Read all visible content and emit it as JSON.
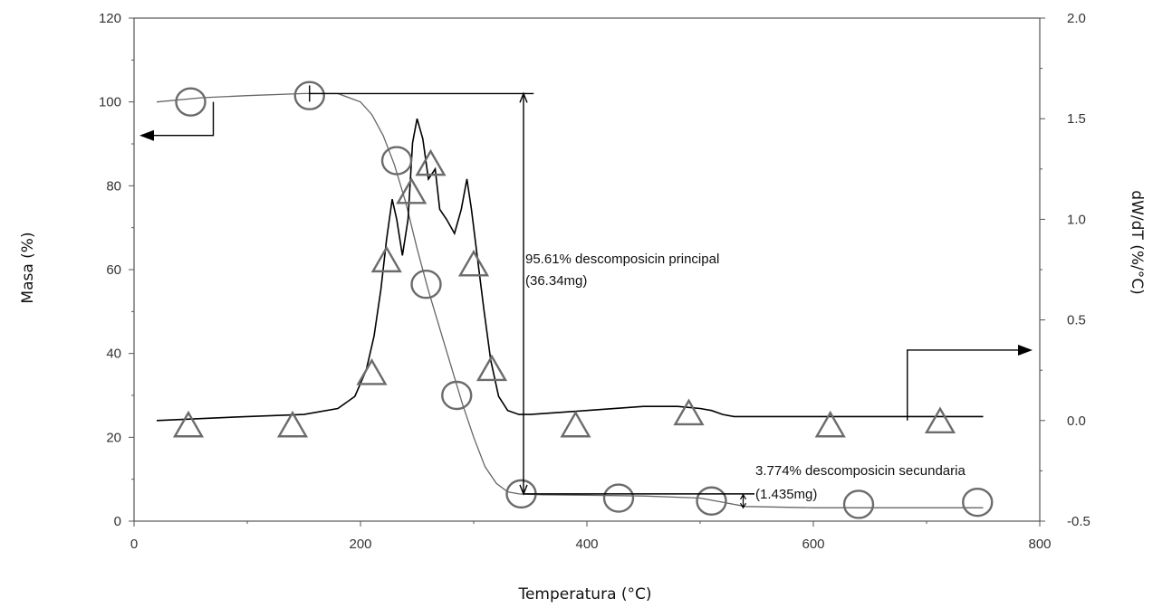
{
  "chart_data": {
    "type": "line",
    "xlabel": "Temperatura (°C)",
    "ylabel": "Masa (%)",
    "y2label": "dW/dT (%/°C)",
    "xlim": [
      0,
      800
    ],
    "ylim": [
      0,
      120
    ],
    "y2lim": [
      -0.5,
      2.0
    ],
    "x_ticks": [
      "0",
      "200",
      "400",
      "600",
      "800"
    ],
    "y_ticks": [
      "0",
      "20",
      "40",
      "60",
      "80",
      "100",
      "120"
    ],
    "y2_ticks": [
      "-0.5",
      "0.0",
      "0.5",
      "1.0",
      "1.5",
      "2.0"
    ],
    "grid": false,
    "series": [
      {
        "axis": "left",
        "marker": "circle",
        "color": "#666666",
        "x": [
          20,
          60,
          100,
          150,
          180,
          200,
          210,
          220,
          230,
          240,
          250,
          260,
          270,
          280,
          290,
          300,
          310,
          320,
          330,
          340,
          360,
          400,
          450,
          500,
          520,
          540,
          600,
          700,
          750
        ],
        "y": [
          100,
          101,
          101.5,
          102,
          102,
          100,
          97,
          92,
          85,
          76,
          65,
          55,
          46,
          37,
          28,
          20,
          13,
          9,
          7,
          6.5,
          6.3,
          6.2,
          6,
          5.5,
          4.5,
          3.5,
          3.2,
          3.2,
          3.2
        ],
        "markers_x": [
          50,
          155,
          232,
          258,
          285,
          342,
          428,
          510,
          640,
          745
        ],
        "markers_y": [
          100,
          101.5,
          86,
          56.5,
          30,
          6.5,
          5.5,
          4.8,
          4,
          4.5
        ]
      },
      {
        "axis": "right",
        "marker": "triangle",
        "color": "#000000",
        "x": [
          20,
          100,
          150,
          180,
          195,
          205,
          212,
          218,
          223,
          228,
          232,
          237,
          242,
          246,
          250,
          255,
          260,
          266,
          270,
          276,
          283,
          289,
          294,
          298,
          303,
          309,
          315,
          322,
          330,
          340,
          350,
          400,
          450,
          480,
          500,
          510,
          520,
          530,
          600,
          700,
          750
        ],
        "y": [
          0,
          0.02,
          0.03,
          0.06,
          0.12,
          0.25,
          0.42,
          0.65,
          0.9,
          1.1,
          1.0,
          0.82,
          1.0,
          1.38,
          1.5,
          1.4,
          1.2,
          1.25,
          1.05,
          1.0,
          0.93,
          1.05,
          1.2,
          1.05,
          0.82,
          0.55,
          0.3,
          0.12,
          0.05,
          0.03,
          0.03,
          0.05,
          0.07,
          0.07,
          0.06,
          0.05,
          0.03,
          0.02,
          0.02,
          0.02,
          0.02
        ],
        "markers_x": [
          48,
          140,
          210,
          223,
          245,
          262,
          300,
          316,
          390,
          490,
          615,
          712
        ],
        "markers_y": [
          -0.02,
          -0.02,
          0.24,
          0.8,
          1.14,
          1.28,
          0.78,
          0.26,
          -0.02,
          0.04,
          -0.02,
          0
        ]
      }
    ],
    "annotations": [
      {
        "line1": "95.61% descomposicin principal",
        "line2": "(36.34mg)"
      },
      {
        "line1": "3.774% descomposicin secundaria",
        "line2": "(1.435mg)"
      }
    ]
  }
}
